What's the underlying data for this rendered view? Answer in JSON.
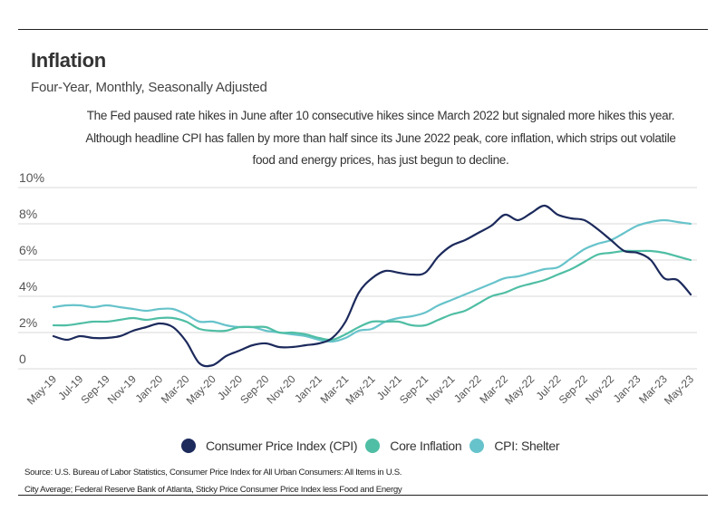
{
  "chart_data": {
    "type": "line",
    "title": "Inflation",
    "subtitle": "Four-Year, Monthly, Seasonally Adjusted",
    "description": [
      "The Fed paused rate hikes in June after 10 consecutive hikes since March 2022 but signaled more hikes this year.",
      "Although headline CPI has fallen by more than half since its June 2022 peak, core inflation, which strips out volatile",
      "food and energy prices, has just begun to decline."
    ],
    "xlabel": "",
    "ylabel": "",
    "ylim": [
      0,
      10
    ],
    "yticks": [
      {
        "value": 0,
        "label": "0"
      },
      {
        "value": 2,
        "label": "2%"
      },
      {
        "value": 4,
        "label": "4%"
      },
      {
        "value": 6,
        "label": "6%"
      },
      {
        "value": 8,
        "label": "8%"
      },
      {
        "value": 10,
        "label": "10%"
      }
    ],
    "grid": true,
    "legend_position": "bottom",
    "x": [
      "May-19",
      "Jun-19",
      "Jul-19",
      "Aug-19",
      "Sep-19",
      "Oct-19",
      "Nov-19",
      "Dec-19",
      "Jan-20",
      "Feb-20",
      "Mar-20",
      "Apr-20",
      "May-20",
      "Jun-20",
      "Jul-20",
      "Aug-20",
      "Sep-20",
      "Oct-20",
      "Nov-20",
      "Dec-20",
      "Jan-21",
      "Feb-21",
      "Mar-21",
      "Apr-21",
      "May-21",
      "Jun-21",
      "Jul-21",
      "Aug-21",
      "Sep-21",
      "Oct-21",
      "Nov-21",
      "Dec-21",
      "Jan-22",
      "Feb-22",
      "Mar-22",
      "Apr-22",
      "May-22",
      "Jun-22",
      "Jul-22",
      "Aug-22",
      "Sep-22",
      "Oct-22",
      "Nov-22",
      "Dec-22",
      "Jan-23",
      "Feb-23",
      "Mar-23",
      "Apr-23",
      "May-23"
    ],
    "xtick_labels": [
      "May-19",
      "Jul-19",
      "Sep-19",
      "Nov-19",
      "Jan-20",
      "Mar-20",
      "May-20",
      "Jul-20",
      "Sep-20",
      "Nov-20",
      "Jan-21",
      "Mar-21",
      "May-21",
      "Jul-21",
      "Sep-21",
      "Nov-21",
      "Jan-22",
      "Mar-22",
      "May-22",
      "Jul-22",
      "Sep-22",
      "Nov-22",
      "Jan-23",
      "Mar-23",
      "May-23"
    ],
    "series": [
      {
        "name": "Consumer Price Index (CPI)",
        "color": "#1c2a5c",
        "values": [
          1.8,
          1.6,
          1.8,
          1.7,
          1.7,
          1.8,
          2.1,
          2.3,
          2.5,
          2.3,
          1.5,
          0.3,
          0.2,
          0.7,
          1.0,
          1.3,
          1.4,
          1.2,
          1.2,
          1.3,
          1.4,
          1.7,
          2.6,
          4.2,
          5.0,
          5.4,
          5.3,
          5.2,
          5.3,
          6.2,
          6.8,
          7.1,
          7.5,
          7.9,
          8.5,
          8.2,
          8.6,
          9.0,
          8.5,
          8.3,
          8.2,
          7.7,
          7.1,
          6.5,
          6.4,
          6.0,
          5.0,
          4.9,
          4.1
        ]
      },
      {
        "name": "Core Inflation",
        "color": "#4fbea4",
        "values": [
          2.4,
          2.4,
          2.5,
          2.6,
          2.6,
          2.7,
          2.8,
          2.7,
          2.8,
          2.8,
          2.6,
          2.2,
          2.1,
          2.1,
          2.3,
          2.3,
          2.3,
          2.0,
          2.0,
          1.9,
          1.7,
          1.6,
          1.9,
          2.3,
          2.6,
          2.6,
          2.6,
          2.4,
          2.4,
          2.7,
          3.0,
          3.2,
          3.6,
          4.0,
          4.2,
          4.5,
          4.7,
          4.9,
          5.2,
          5.5,
          5.9,
          6.3,
          6.4,
          6.5,
          6.5,
          6.5,
          6.4,
          6.2,
          6.0
        ]
      },
      {
        "name": "CPI: Shelter",
        "color": "#67c3cb",
        "values": [
          3.4,
          3.5,
          3.5,
          3.4,
          3.5,
          3.4,
          3.3,
          3.2,
          3.3,
          3.3,
          3.0,
          2.6,
          2.6,
          2.4,
          2.3,
          2.3,
          2.1,
          2.0,
          1.9,
          1.8,
          1.6,
          1.5,
          1.7,
          2.1,
          2.2,
          2.6,
          2.8,
          2.9,
          3.1,
          3.5,
          3.8,
          4.1,
          4.4,
          4.7,
          5.0,
          5.1,
          5.3,
          5.5,
          5.6,
          6.1,
          6.6,
          6.9,
          7.1,
          7.5,
          7.9,
          8.1,
          8.2,
          8.1,
          8.0
        ]
      }
    ]
  },
  "legend": [
    {
      "label": "Consumer Price Index (CPI)",
      "color": "#1c2a5c"
    },
    {
      "label": "Core Inflation",
      "color": "#4fbea4"
    },
    {
      "label": "CPI: Shelter",
      "color": "#67c3cb"
    }
  ],
  "source": [
    "Source:  U.S. Bureau of Labor Statistics, Consumer Price Index for All Urban Consumers: All Items in U.S.",
    "City Average; Federal Reserve Bank of Atlanta, Sticky Price Consumer Price Index less Food and Energy"
  ]
}
